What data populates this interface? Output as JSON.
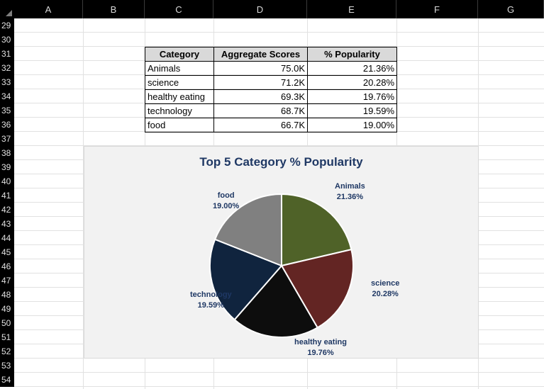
{
  "sheet": {
    "columns": [
      "A",
      "B",
      "C",
      "D",
      "E",
      "F",
      "G"
    ],
    "rows": [
      "29",
      "30",
      "31",
      "32",
      "33",
      "34",
      "35",
      "36",
      "37",
      "38",
      "39",
      "40",
      "41",
      "42",
      "43",
      "44",
      "45",
      "46",
      "47",
      "48",
      "49",
      "50",
      "51",
      "52",
      "53",
      "54"
    ]
  },
  "table": {
    "headers": [
      "Category",
      "Aggregate Scores",
      "% Popularity"
    ],
    "rows": [
      [
        "Animals",
        "75.0K",
        "21.36%"
      ],
      [
        "science",
        "71.2K",
        "20.28%"
      ],
      [
        "healthy eating",
        "69.3K",
        "19.76%"
      ],
      [
        "technology",
        "68.7K",
        "19.59%"
      ],
      [
        "food",
        "66.7K",
        "19.00%"
      ]
    ]
  },
  "chart_data": {
    "type": "pie",
    "title": "Top 5 Category % Popularity",
    "categories": [
      "Animals",
      "science",
      "healthy eating",
      "technology",
      "food"
    ],
    "values": [
      21.36,
      20.28,
      19.76,
      19.59,
      19.0
    ],
    "value_labels": [
      "21.36%",
      "20.28%",
      "19.76%",
      "19.59%",
      "19.00%"
    ],
    "colors": [
      "#4f6228",
      "#632523",
      "#0d0d0d",
      "#10243e",
      "#808080"
    ],
    "legend": "none",
    "label_color": "#1f3864"
  }
}
